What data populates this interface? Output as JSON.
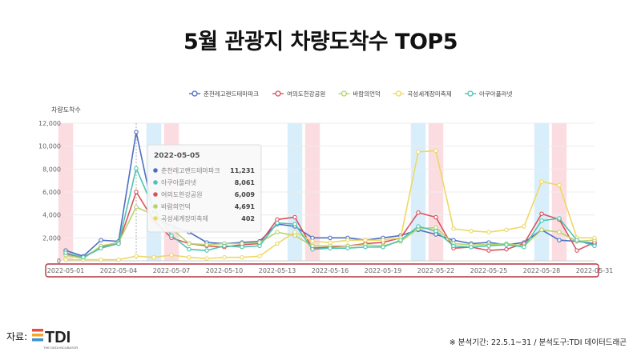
{
  "title": "5월 관광지 차량도착수 TOP5",
  "footer": {
    "source_label": "자료:",
    "logo_text": "TDI",
    "logo_sub": "THE DATA INCUBATOR",
    "note": "※ 분석기간: 22.5.1~31 / 분석도구:TDI 데이터드래곤"
  },
  "chart_data": {
    "type": "line",
    "ylabel": "차량도착수",
    "ylim": [
      0,
      12000
    ],
    "yticks": [
      "0",
      "2,000",
      "4,000",
      "6,000",
      "8,000",
      "10,000",
      "12,000"
    ],
    "x": [
      "2022-05-01",
      "2022-05-02",
      "2022-05-03",
      "2022-05-04",
      "2022-05-05",
      "2022-05-06",
      "2022-05-07",
      "2022-05-08",
      "2022-05-09",
      "2022-05-10",
      "2022-05-11",
      "2022-05-12",
      "2022-05-13",
      "2022-05-14",
      "2022-05-15",
      "2022-05-16",
      "2022-05-17",
      "2022-05-18",
      "2022-05-19",
      "2022-05-20",
      "2022-05-21",
      "2022-05-22",
      "2022-05-23",
      "2022-05-24",
      "2022-05-25",
      "2022-05-26",
      "2022-05-27",
      "2022-05-28",
      "2022-05-29",
      "2022-05-30",
      "2022-05-31"
    ],
    "xtick_labels": [
      "2022-05-01",
      "2022-05-04",
      "2022-05-07",
      "2022-05-10",
      "2022-05-13",
      "2022-05-16",
      "2022-05-19",
      "2022-05-22",
      "2022-05-25",
      "2022-05-28",
      "2022-05-31"
    ],
    "legend_position": "top",
    "series": [
      {
        "name": "춘천레고랜드테마파크",
        "color": "#4e6fc1",
        "values": [
          900,
          400,
          1800,
          1700,
          11231,
          4000,
          3000,
          2500,
          1600,
          1500,
          1600,
          1700,
          3200,
          3000,
          2000,
          2000,
          2000,
          1800,
          2000,
          2200,
          2700,
          2300,
          1800,
          1500,
          1600,
          1400,
          1600,
          2700,
          1800,
          1700,
          1500
        ]
      },
      {
        "name": "여의도한강공원",
        "color": "#d9535e",
        "values": [
          600,
          300,
          1200,
          1500,
          6009,
          3500,
          2000,
          1500,
          1300,
          1200,
          1400,
          1500,
          3600,
          3800,
          1100,
          1200,
          1300,
          1500,
          1600,
          2000,
          4200,
          3800,
          1100,
          1200,
          900,
          1000,
          1500,
          4100,
          3600,
          900,
          1600
        ]
      },
      {
        "name": "바람의언덕",
        "color": "#b5d46a",
        "values": [
          500,
          200,
          1300,
          1600,
          4691,
          4000,
          2800,
          1500,
          1400,
          1500,
          1500,
          1600,
          2500,
          2200,
          1300,
          1300,
          1300,
          1400,
          1300,
          1700,
          2800,
          2900,
          1500,
          1400,
          1400,
          1500,
          1300,
          2700,
          2500,
          1700,
          1800
        ]
      },
      {
        "name": "곡성세계장미축제",
        "color": "#eed862",
        "values": [
          100,
          100,
          100,
          100,
          402,
          300,
          500,
          300,
          200,
          300,
          300,
          400,
          1500,
          2500,
          1700,
          1600,
          1800,
          1800,
          1800,
          2000,
          9500,
          9600,
          2800,
          2600,
          2500,
          2700,
          3000,
          6900,
          6600,
          2000,
          2000
        ]
      },
      {
        "name": "아쿠아플라넷",
        "color": "#4ec4b0",
        "values": [
          700,
          300,
          1100,
          1500,
          8061,
          4500,
          2200,
          1000,
          900,
          1300,
          1200,
          1300,
          3300,
          3200,
          1000,
          1100,
          1100,
          1200,
          1200,
          1800,
          3000,
          2600,
          1300,
          1200,
          1300,
          1400,
          1200,
          3500,
          3700,
          1800,
          1300
        ]
      }
    ],
    "highlight_bands": [
      {
        "x": "2022-05-01",
        "color": "#fbdde1"
      },
      {
        "x": "2022-05-06",
        "color": "#d9eefb"
      },
      {
        "x": "2022-05-07",
        "color": "#fbdde1"
      },
      {
        "x": "2022-05-14",
        "color": "#d9eefb"
      },
      {
        "x": "2022-05-15",
        "color": "#fbdde1"
      },
      {
        "x": "2022-05-21",
        "color": "#d9eefb"
      },
      {
        "x": "2022-05-22",
        "color": "#fbdde1"
      },
      {
        "x": "2022-05-28",
        "color": "#d9eefb"
      },
      {
        "x": "2022-05-29",
        "color": "#fbdde1"
      }
    ],
    "tooltip": {
      "date": "2022-05-05",
      "rows": [
        {
          "name": "춘천레고랜드테마파크",
          "value": "11,231",
          "color": "#4e6fc1"
        },
        {
          "name": "아쿠아플라넷",
          "value": "8,061",
          "color": "#4ec4b0"
        },
        {
          "name": "여의도한강공원",
          "value": "6,009",
          "color": "#d9535e"
        },
        {
          "name": "바람의언덕",
          "value": "4,691",
          "color": "#b5d46a"
        },
        {
          "name": "곡성세계장미축제",
          "value": "402",
          "color": "#eed862"
        }
      ]
    },
    "frame_color": "#b53340"
  }
}
